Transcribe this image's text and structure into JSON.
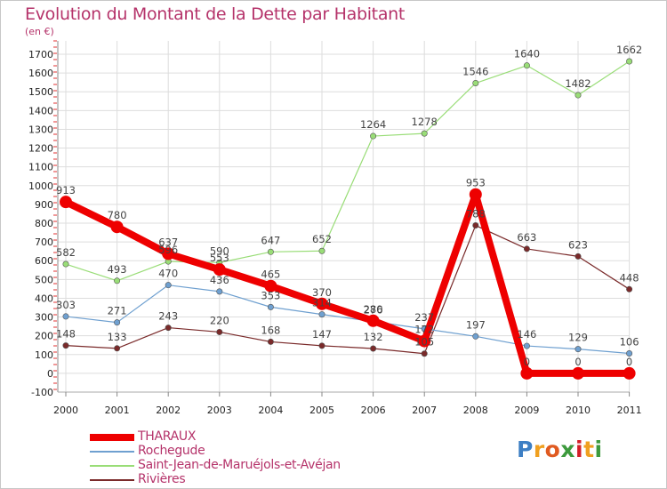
{
  "title": "Evolution du Montant de la Dette par Habitant",
  "unit_label": "(en €)",
  "logo": {
    "text": "Proxiti",
    "letter_colors": [
      "#3d7fc4",
      "#f0a020",
      "#e05a20",
      "#3d9a3d",
      "#d4202a",
      "#f0a020",
      "#3d9a3d"
    ]
  },
  "chart_data": {
    "type": "line",
    "title": "Evolution du Montant de la Dette par Habitant",
    "ylabel": "(en €)",
    "xlabel": "",
    "x": [
      "2000",
      "2001",
      "2002",
      "2003",
      "2004",
      "2005",
      "2006",
      "2007",
      "2008",
      "2009",
      "2010",
      "2011"
    ],
    "ylim": [
      -100,
      1700
    ],
    "yticks": [
      "-100",
      "0",
      "100",
      "200",
      "300",
      "400",
      "500",
      "600",
      "700",
      "800",
      "900",
      "1000",
      "1100",
      "1200",
      "1300",
      "1400",
      "1500",
      "1600",
      "1700"
    ],
    "grid": true,
    "legend_position": "bottom-left",
    "series": [
      {
        "name": "THARAUX",
        "color": "#ee0000",
        "values": [
          913,
          780,
          637,
          553,
          465,
          370,
          280,
          172,
          953,
          0,
          0,
          0
        ],
        "labels": [
          "913",
          "780",
          "637",
          "553",
          "465",
          "370",
          "280",
          "172",
          "953",
          "0",
          "0",
          "0"
        ]
      },
      {
        "name": "Rochegude",
        "color": "#6fa0d0",
        "values": [
          303,
          271,
          470,
          436,
          353,
          314,
          276,
          237,
          197,
          146,
          129,
          106
        ],
        "labels": [
          "303",
          "271",
          "470",
          "436",
          "353",
          "314",
          "276",
          "237",
          "197",
          "146",
          "129",
          "106"
        ]
      },
      {
        "name": "Saint-Jean-de-Maruéjols-et-Avéjan",
        "color": "#99dd77",
        "values": [
          582,
          493,
          596,
          590,
          647,
          652,
          1264,
          1278,
          1546,
          1640,
          1482,
          1662
        ],
        "labels": [
          "582",
          "493",
          "596",
          "590",
          "647",
          "652",
          "1264",
          "1278",
          "1546",
          "1640",
          "1482",
          "1662"
        ]
      },
      {
        "name": "Rivières",
        "color": "#7a2a2a",
        "values": [
          148,
          133,
          243,
          220,
          168,
          147,
          132,
          105,
          788,
          663,
          623,
          448
        ],
        "labels": [
          "148",
          "133",
          "243",
          "220",
          "168",
          "147",
          "132",
          "105",
          "788",
          "663",
          "623",
          "448"
        ]
      }
    ]
  }
}
